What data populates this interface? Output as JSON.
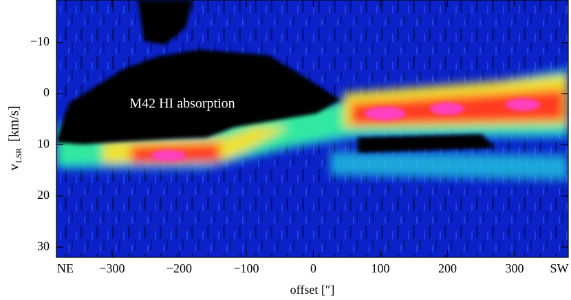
{
  "chart_data": {
    "type": "heatmap",
    "x_label": "offset [″]",
    "y_label_main": "v",
    "y_label_sub": "LSR",
    "y_label_unit": "[km/s]",
    "x_edge_labels": [
      "NE",
      "SW"
    ],
    "annotation": "M42 HI absorption",
    "xlim": [
      -383,
      380
    ],
    "ylim": [
      -18.3,
      32
    ],
    "y_inverted": true,
    "xticks": [
      {
        "value": -300,
        "label": "−300"
      },
      {
        "value": -200,
        "label": "−200"
      },
      {
        "value": -100,
        "label": "−100"
      },
      0,
      100,
      200,
      300
    ],
    "yticks": [
      {
        "value": -10,
        "label": "−10"
      },
      0,
      10,
      20,
      30
    ]
  }
}
